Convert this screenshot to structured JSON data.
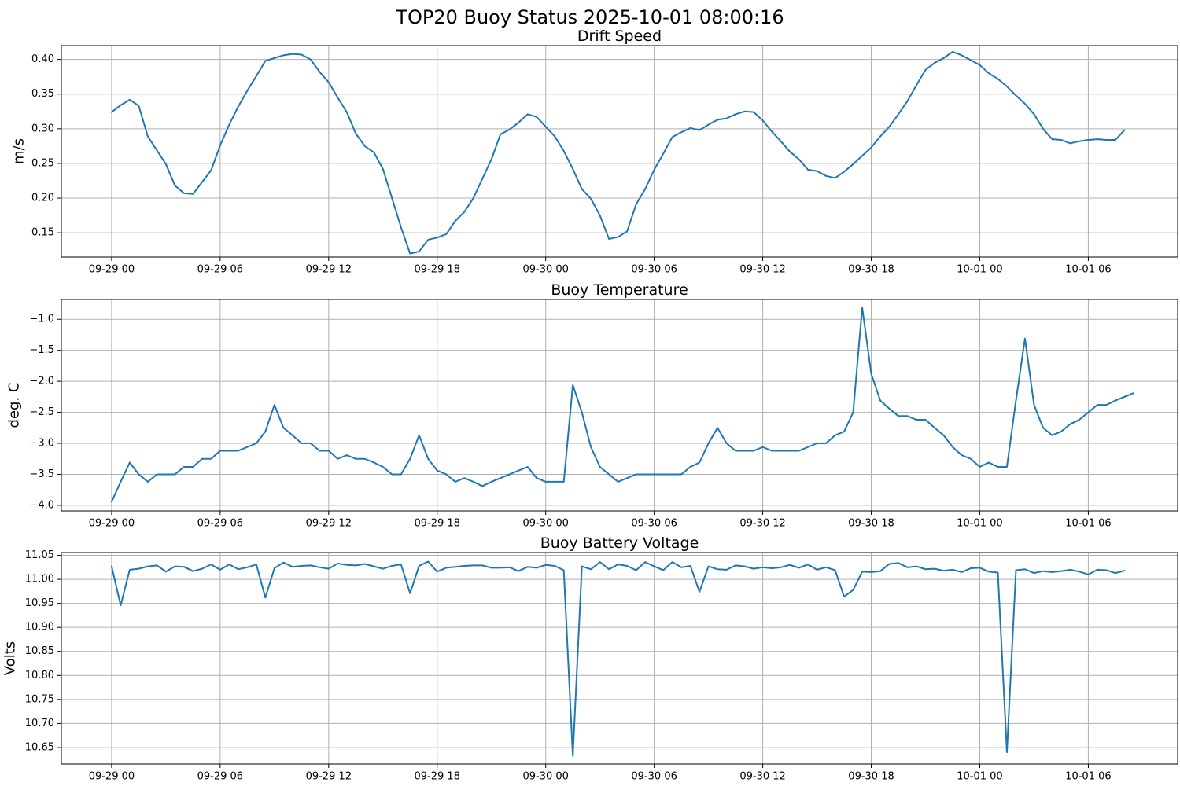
{
  "figure": {
    "title": "TOP20 Buoy Status 2025-10-01 08:00:16"
  },
  "colors": {
    "line": "#1f77b4",
    "grid": "#b0b0b0"
  },
  "chart_data": [
    {
      "type": "line",
      "title": "Drift Speed",
      "xlabel": "",
      "ylabel": "m/s",
      "x_start": "09-29 00:00",
      "x_step_hours": 0.5,
      "x_ticks": [
        "09-29 00",
        "09-29 06",
        "09-29 12",
        "09-29 18",
        "09-30 00",
        "09-30 06",
        "09-30 12",
        "09-30 18",
        "10-01 00",
        "10-01 06"
      ],
      "y_ticks": [
        0.15,
        0.2,
        0.25,
        0.3,
        0.35,
        0.4
      ],
      "ylim": [
        0.115,
        0.42
      ],
      "grid": true,
      "values": [
        0.324,
        0.334,
        0.342,
        0.333,
        0.289,
        0.269,
        0.249,
        0.218,
        0.207,
        0.206,
        0.223,
        0.24,
        0.276,
        0.306,
        0.332,
        0.355,
        0.376,
        0.398,
        0.402,
        0.406,
        0.408,
        0.407,
        0.4,
        0.382,
        0.367,
        0.345,
        0.324,
        0.293,
        0.275,
        0.266,
        0.242,
        0.2,
        0.158,
        0.12,
        0.123,
        0.14,
        0.143,
        0.148,
        0.167,
        0.18,
        0.2,
        0.228,
        0.256,
        0.292,
        0.299,
        0.309,
        0.321,
        0.317,
        0.303,
        0.289,
        0.268,
        0.242,
        0.213,
        0.199,
        0.175,
        0.141,
        0.144,
        0.152,
        0.191,
        0.213,
        0.241,
        0.264,
        0.288,
        0.295,
        0.301,
        0.298,
        0.306,
        0.313,
        0.315,
        0.321,
        0.325,
        0.324,
        0.312,
        0.296,
        0.282,
        0.267,
        0.256,
        0.241,
        0.239,
        0.232,
        0.229,
        0.238,
        0.249,
        0.261,
        0.273,
        0.289,
        0.303,
        0.321,
        0.34,
        0.363,
        0.385,
        0.395,
        0.402,
        0.411,
        0.406,
        0.399,
        0.392,
        0.38,
        0.372,
        0.361,
        0.348,
        0.336,
        0.321,
        0.3,
        0.285,
        0.284,
        0.279,
        0.282,
        0.284,
        0.285,
        0.284,
        0.284,
        0.298
      ]
    },
    {
      "type": "line",
      "title": "Buoy Temperature",
      "xlabel": "",
      "ylabel": "deg. C",
      "x_start": "09-29 00:00",
      "x_step_hours": 0.5,
      "x_ticks": [
        "09-29 00",
        "09-29 06",
        "09-29 12",
        "09-29 18",
        "09-30 00",
        "09-30 06",
        "09-30 12",
        "09-30 18",
        "10-01 00",
        "10-01 06"
      ],
      "y_ticks": [
        -4.0,
        -3.5,
        -3.0,
        -2.5,
        -2.0,
        -1.5,
        -1.0
      ],
      "ylim": [
        -4.09,
        -0.68
      ],
      "grid": true,
      "values": [
        -3.94,
        -3.62,
        -3.31,
        -3.5,
        -3.62,
        -3.5,
        -3.5,
        -3.5,
        -3.38,
        -3.38,
        -3.25,
        -3.25,
        -3.12,
        -3.12,
        -3.12,
        -3.06,
        -3.0,
        -2.81,
        -2.38,
        -2.75,
        -2.87,
        -3.0,
        -3.0,
        -3.12,
        -3.12,
        -3.25,
        -3.19,
        -3.25,
        -3.25,
        -3.31,
        -3.38,
        -3.5,
        -3.5,
        -3.25,
        -2.87,
        -3.25,
        -3.44,
        -3.5,
        -3.62,
        -3.56,
        -3.62,
        -3.69,
        -3.62,
        -3.56,
        -3.5,
        -3.44,
        -3.38,
        -3.56,
        -3.62,
        -3.62,
        -3.62,
        -2.06,
        -2.5,
        -3.06,
        -3.38,
        -3.5,
        -3.62,
        -3.56,
        -3.5,
        -3.5,
        -3.5,
        -3.5,
        -3.5,
        -3.5,
        -3.38,
        -3.31,
        -3.0,
        -2.75,
        -3.0,
        -3.12,
        -3.12,
        -3.12,
        -3.06,
        -3.12,
        -3.12,
        -3.12,
        -3.12,
        -3.06,
        -3.0,
        -3.0,
        -2.87,
        -2.81,
        -2.5,
        -0.81,
        -1.88,
        -2.31,
        -2.44,
        -2.56,
        -2.56,
        -2.62,
        -2.62,
        -2.75,
        -2.87,
        -3.06,
        -3.19,
        -3.25,
        -3.38,
        -3.31,
        -3.38,
        -3.38,
        -2.31,
        -1.31,
        -2.38,
        -2.75,
        -2.87,
        -2.81,
        -2.69,
        -2.62,
        -2.5,
        -2.38,
        -2.38,
        -2.31,
        -2.25,
        -2.19
      ]
    },
    {
      "type": "line",
      "title": "Buoy Battery Voltage",
      "xlabel": "",
      "ylabel": "Volts",
      "x_start": "09-29 00:00",
      "x_step_hours": 0.5,
      "x_ticks": [
        "09-29 00",
        "09-29 06",
        "09-29 12",
        "09-29 18",
        "09-30 00",
        "09-30 06",
        "09-30 12",
        "09-30 18",
        "10-01 00",
        "10-01 06"
      ],
      "y_ticks": [
        10.65,
        10.7,
        10.75,
        10.8,
        10.85,
        10.9,
        10.95,
        11.0,
        11.05
      ],
      "ylim": [
        10.6155,
        11.0558
      ],
      "grid": true,
      "values": [
        11.027,
        10.946,
        11.02,
        11.022,
        11.027,
        11.029,
        11.016,
        11.027,
        11.026,
        11.017,
        11.022,
        11.031,
        11.02,
        11.031,
        11.021,
        11.025,
        11.031,
        10.962,
        11.023,
        11.035,
        11.026,
        11.028,
        11.029,
        11.025,
        11.022,
        11.033,
        11.03,
        11.029,
        11.032,
        11.027,
        11.022,
        11.028,
        11.031,
        10.971,
        11.028,
        11.037,
        11.016,
        11.024,
        11.026,
        11.028,
        11.029,
        11.029,
        11.024,
        11.024,
        11.025,
        11.017,
        11.026,
        11.024,
        11.03,
        11.028,
        11.019,
        10.632,
        11.027,
        11.021,
        11.036,
        11.021,
        11.031,
        11.028,
        11.019,
        11.036,
        11.027,
        11.019,
        11.036,
        11.025,
        11.028,
        10.974,
        11.027,
        11.021,
        11.02,
        11.029,
        11.027,
        11.022,
        11.025,
        11.023,
        11.025,
        11.03,
        11.024,
        11.031,
        11.02,
        11.025,
        11.019,
        10.964,
        10.978,
        11.016,
        11.015,
        11.017,
        11.032,
        11.034,
        11.025,
        11.027,
        11.021,
        11.022,
        11.018,
        11.02,
        11.015,
        11.023,
        11.024,
        11.016,
        11.014,
        10.64,
        11.019,
        11.021,
        11.013,
        11.017,
        11.015,
        11.017,
        11.02,
        11.016,
        11.01,
        11.02,
        11.019,
        11.013,
        11.018
      ]
    }
  ]
}
